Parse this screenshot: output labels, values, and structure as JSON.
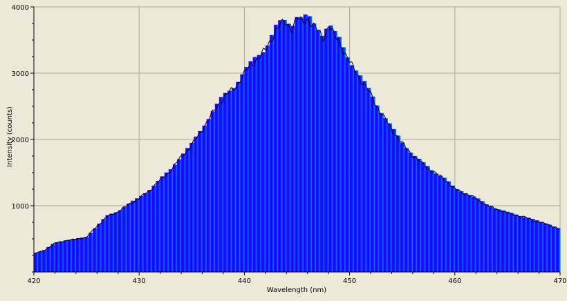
{
  "chart_data": {
    "type": "area",
    "title": "",
    "xlabel": "Wavelength (nm)",
    "ylabel": "Intensity (counts)",
    "xlim": [
      420,
      470
    ],
    "ylim": [
      0,
      4000
    ],
    "xticks": [
      420,
      430,
      440,
      450,
      460,
      470
    ],
    "yticks": [
      1000,
      2000,
      3000,
      4000
    ],
    "xtick_labels": [
      "420",
      "430",
      "440",
      "450",
      "460",
      "470"
    ],
    "ytick_labels": [
      "1000",
      "2000",
      "3000",
      "4000"
    ],
    "grid": true,
    "legend": "none",
    "fill": "wavelength-coloured gradient (violet to light blue)",
    "colors": {
      "background": "#ece9d8",
      "grid": "#a7a69a",
      "line": "#000000",
      "gradient_start": "#5a00ff",
      "gradient_mid": "#0010f0",
      "gradient_end": "#0090ff"
    },
    "series": [
      {
        "x": [
          420,
          421,
          422,
          423,
          424,
          425,
          426,
          427,
          428,
          429,
          430,
          431,
          432,
          433,
          434,
          435,
          436,
          437,
          438,
          439,
          440,
          441,
          442,
          443,
          443.5,
          444,
          444.5,
          445,
          445.5,
          446,
          446.5,
          447,
          447.5,
          448,
          448.5,
          449,
          450,
          451,
          452,
          453,
          454,
          455,
          456,
          457,
          458,
          459,
          460,
          461,
          462,
          463,
          464,
          465,
          466,
          467,
          468,
          469,
          470
        ],
        "y": [
          280,
          330,
          440,
          480,
          500,
          530,
          700,
          850,
          920,
          1030,
          1120,
          1250,
          1400,
          1550,
          1760,
          1930,
          2180,
          2430,
          2660,
          2800,
          3030,
          3230,
          3380,
          3700,
          3780,
          3800,
          3720,
          3870,
          3820,
          3870,
          3760,
          3680,
          3580,
          3760,
          3620,
          3520,
          3200,
          2950,
          2710,
          2420,
          2180,
          1960,
          1780,
          1640,
          1520,
          1420,
          1260,
          1200,
          1120,
          1020,
          960,
          900,
          860,
          820,
          760,
          720,
          650
        ]
      }
    ]
  }
}
